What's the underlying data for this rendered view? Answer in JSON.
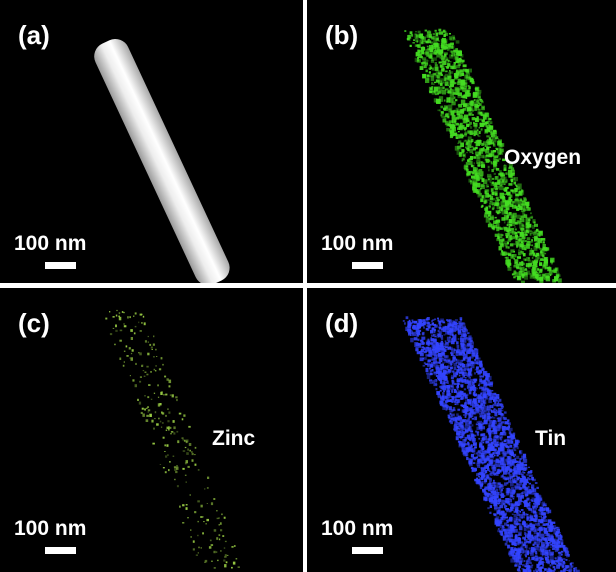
{
  "panels": [
    {
      "id": "a",
      "label": "(a)",
      "element": "",
      "scale_text": "100 nm",
      "color": "#ffffff"
    },
    {
      "id": "b",
      "label": "(b)",
      "element": "Oxygen",
      "scale_text": "100 nm",
      "color": "#44dd22"
    },
    {
      "id": "c",
      "label": "(c)",
      "element": "Zinc",
      "scale_text": "100 nm",
      "color": "#99cc44"
    },
    {
      "id": "d",
      "label": "(d)",
      "element": "Tin",
      "scale_text": "100 nm",
      "color": "#3344ff"
    }
  ]
}
